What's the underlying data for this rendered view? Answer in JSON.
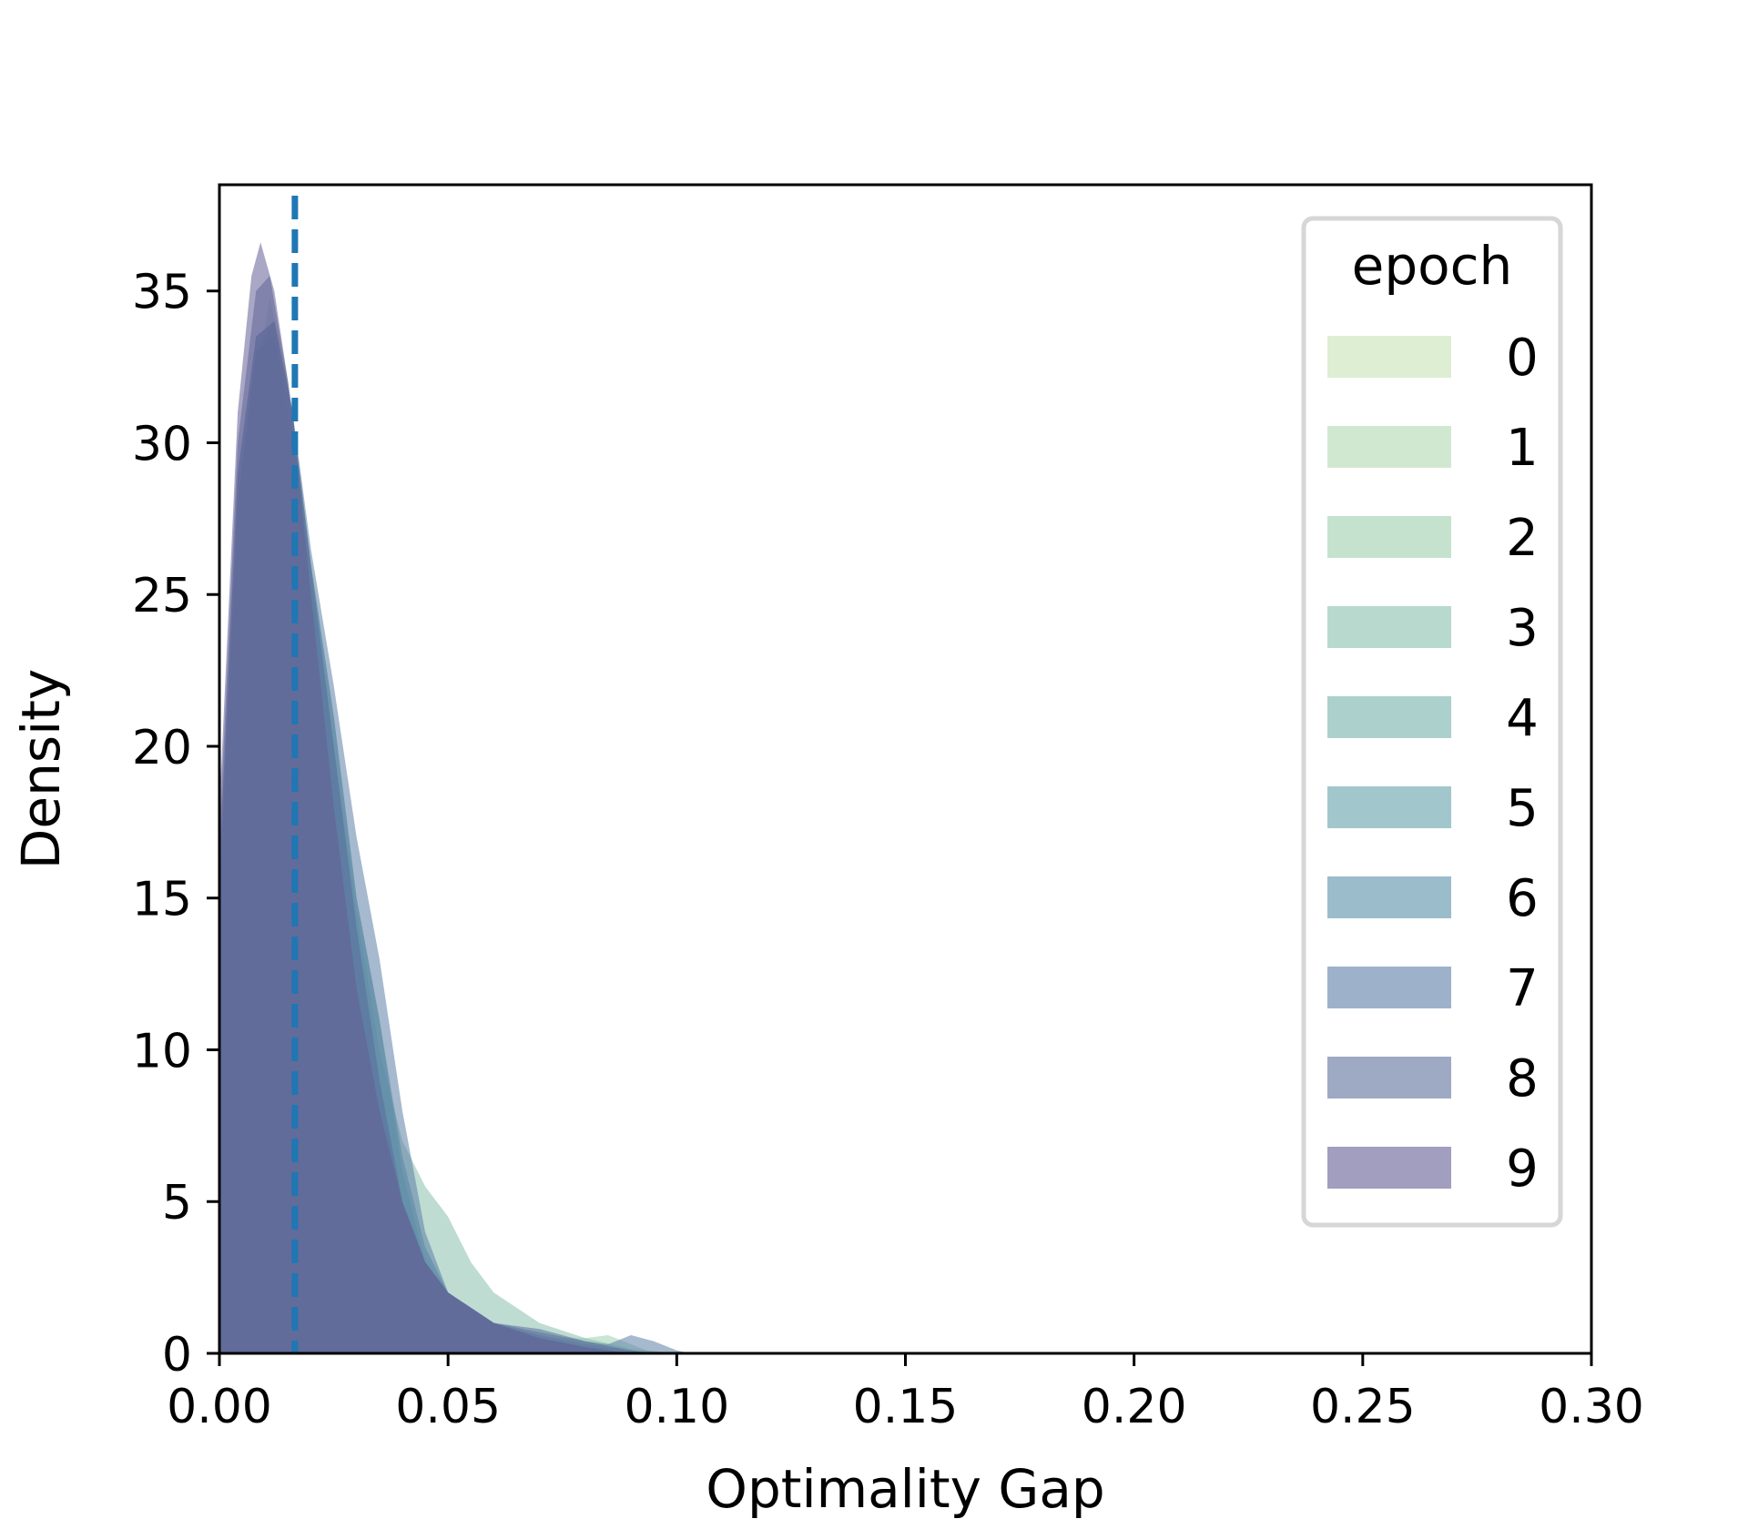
{
  "chart_data": {
    "type": "area",
    "title": "",
    "xlabel": "Optimality Gap",
    "ylabel": "Density",
    "xlim": [
      0.0,
      0.3
    ],
    "ylim": [
      0,
      38.5
    ],
    "xticks": [
      "0.00",
      "0.05",
      "0.10",
      "0.15",
      "0.20",
      "0.25",
      "0.30"
    ],
    "yticks": [
      "0",
      "5",
      "10",
      "15",
      "20",
      "25",
      "30",
      "35"
    ],
    "grid": false,
    "legend": {
      "title": "epoch",
      "placement": "top-right"
    },
    "reference_line": {
      "x": 0.0165,
      "style": "dashed",
      "color": "#1f77b4"
    },
    "series": [
      {
        "name": "0",
        "color": "#c6e3b5",
        "points": [
          [
            0,
            10
          ],
          [
            0.004,
            24
          ],
          [
            0.008,
            31
          ],
          [
            0.012,
            33
          ],
          [
            0.016,
            31
          ],
          [
            0.02,
            26
          ],
          [
            0.025,
            19
          ],
          [
            0.03,
            13
          ],
          [
            0.035,
            8
          ],
          [
            0.04,
            5
          ],
          [
            0.045,
            3
          ],
          [
            0.05,
            1.8
          ],
          [
            0.06,
            0.8
          ],
          [
            0.07,
            0.4
          ],
          [
            0.08,
            0.15
          ],
          [
            0.09,
            0
          ]
        ]
      },
      {
        "name": "1",
        "color": "#b2d9b0",
        "points": [
          [
            0,
            12
          ],
          [
            0.004,
            26
          ],
          [
            0.008,
            32
          ],
          [
            0.011,
            34.8
          ],
          [
            0.015,
            32
          ],
          [
            0.02,
            25
          ],
          [
            0.025,
            18
          ],
          [
            0.03,
            12
          ],
          [
            0.035,
            7.5
          ],
          [
            0.04,
            4.8
          ],
          [
            0.045,
            3
          ],
          [
            0.05,
            2
          ],
          [
            0.06,
            0.9
          ],
          [
            0.07,
            0.4
          ],
          [
            0.08,
            0.2
          ],
          [
            0.09,
            0.05
          ],
          [
            0.095,
            0
          ]
        ]
      },
      {
        "name": "2",
        "color": "#9ccfae",
        "points": [
          [
            0,
            13
          ],
          [
            0.004,
            27
          ],
          [
            0.008,
            32
          ],
          [
            0.011,
            33.8
          ],
          [
            0.015,
            31
          ],
          [
            0.02,
            24
          ],
          [
            0.025,
            17
          ],
          [
            0.03,
            11.5
          ],
          [
            0.035,
            7.5
          ],
          [
            0.04,
            5
          ],
          [
            0.045,
            3.2
          ],
          [
            0.05,
            2
          ],
          [
            0.06,
            0.9
          ],
          [
            0.07,
            0.5
          ],
          [
            0.08,
            0.5
          ],
          [
            0.085,
            0.6
          ],
          [
            0.09,
            0.3
          ],
          [
            0.095,
            0
          ]
        ]
      },
      {
        "name": "3",
        "color": "#88c0ad",
        "points": [
          [
            0,
            14
          ],
          [
            0.004,
            27
          ],
          [
            0.008,
            33
          ],
          [
            0.012,
            34
          ],
          [
            0.016,
            31
          ],
          [
            0.02,
            26
          ],
          [
            0.025,
            20
          ],
          [
            0.03,
            14.5
          ],
          [
            0.035,
            10
          ],
          [
            0.04,
            7
          ],
          [
            0.045,
            5.5
          ],
          [
            0.05,
            4.5
          ],
          [
            0.055,
            3
          ],
          [
            0.06,
            2
          ],
          [
            0.07,
            1
          ],
          [
            0.08,
            0.5
          ],
          [
            0.09,
            0.15
          ],
          [
            0.1,
            0
          ]
        ]
      },
      {
        "name": "4",
        "color": "#74b0a8",
        "points": [
          [
            0,
            15
          ],
          [
            0.004,
            28
          ],
          [
            0.008,
            33
          ],
          [
            0.012,
            33.5
          ],
          [
            0.016,
            30.5
          ],
          [
            0.02,
            26
          ],
          [
            0.025,
            21
          ],
          [
            0.03,
            15
          ],
          [
            0.035,
            11
          ],
          [
            0.04,
            6
          ],
          [
            0.045,
            3
          ],
          [
            0.05,
            2
          ],
          [
            0.06,
            1
          ],
          [
            0.07,
            0.5
          ],
          [
            0.08,
            0.2
          ],
          [
            0.09,
            0
          ]
        ]
      },
      {
        "name": "5",
        "color": "#62a1aa",
        "points": [
          [
            0,
            15
          ],
          [
            0.004,
            28
          ],
          [
            0.008,
            33
          ],
          [
            0.012,
            33.5
          ],
          [
            0.016,
            30
          ],
          [
            0.02,
            25.5
          ],
          [
            0.025,
            20
          ],
          [
            0.03,
            14
          ],
          [
            0.035,
            9
          ],
          [
            0.04,
            5
          ],
          [
            0.045,
            3
          ],
          [
            0.05,
            2
          ],
          [
            0.06,
            1
          ],
          [
            0.07,
            0.5
          ],
          [
            0.08,
            0.2
          ],
          [
            0.09,
            0
          ]
        ]
      },
      {
        "name": "6",
        "color": "#5690a8",
        "points": [
          [
            0,
            16
          ],
          [
            0.004,
            29
          ],
          [
            0.008,
            33.5
          ],
          [
            0.012,
            34
          ],
          [
            0.016,
            31
          ],
          [
            0.02,
            26
          ],
          [
            0.025,
            21
          ],
          [
            0.03,
            15
          ],
          [
            0.035,
            11
          ],
          [
            0.04,
            6.5
          ],
          [
            0.045,
            3.5
          ],
          [
            0.05,
            2
          ],
          [
            0.06,
            1
          ],
          [
            0.07,
            0.6
          ],
          [
            0.08,
            0.3
          ],
          [
            0.09,
            0.1
          ],
          [
            0.095,
            0
          ]
        ]
      },
      {
        "name": "7",
        "color": "#5c7fa6",
        "points": [
          [
            0,
            16
          ],
          [
            0.004,
            29
          ],
          [
            0.008,
            33.5
          ],
          [
            0.012,
            34
          ],
          [
            0.016,
            31
          ],
          [
            0.02,
            26.5
          ],
          [
            0.025,
            22
          ],
          [
            0.03,
            17
          ],
          [
            0.035,
            13
          ],
          [
            0.04,
            8
          ],
          [
            0.045,
            4
          ],
          [
            0.05,
            2
          ],
          [
            0.06,
            1
          ],
          [
            0.07,
            0.7
          ],
          [
            0.08,
            0.4
          ],
          [
            0.085,
            0.3
          ],
          [
            0.09,
            0.6
          ],
          [
            0.095,
            0.4
          ],
          [
            0.1,
            0.1
          ],
          [
            0.103,
            0
          ]
        ]
      },
      {
        "name": "8",
        "color": "#5e6f9c",
        "points": [
          [
            0,
            17
          ],
          [
            0.004,
            30
          ],
          [
            0.008,
            35
          ],
          [
            0.011,
            35.5
          ],
          [
            0.015,
            32
          ],
          [
            0.02,
            26
          ],
          [
            0.025,
            20
          ],
          [
            0.03,
            14
          ],
          [
            0.035,
            9
          ],
          [
            0.04,
            5
          ],
          [
            0.045,
            3
          ],
          [
            0.05,
            2
          ],
          [
            0.06,
            1
          ],
          [
            0.07,
            0.8
          ],
          [
            0.08,
            0.4
          ],
          [
            0.09,
            0.1
          ],
          [
            0.095,
            0
          ]
        ]
      },
      {
        "name": "9",
        "color": "#635e95",
        "points": [
          [
            0,
            18
          ],
          [
            0.004,
            31
          ],
          [
            0.007,
            35.5
          ],
          [
            0.009,
            36.6
          ],
          [
            0.012,
            35
          ],
          [
            0.016,
            31
          ],
          [
            0.02,
            25
          ],
          [
            0.025,
            18
          ],
          [
            0.03,
            12
          ],
          [
            0.035,
            8
          ],
          [
            0.04,
            5
          ],
          [
            0.045,
            3
          ],
          [
            0.05,
            2
          ],
          [
            0.06,
            1
          ],
          [
            0.07,
            0.5
          ],
          [
            0.08,
            0.2
          ],
          [
            0.09,
            0
          ]
        ]
      }
    ]
  }
}
